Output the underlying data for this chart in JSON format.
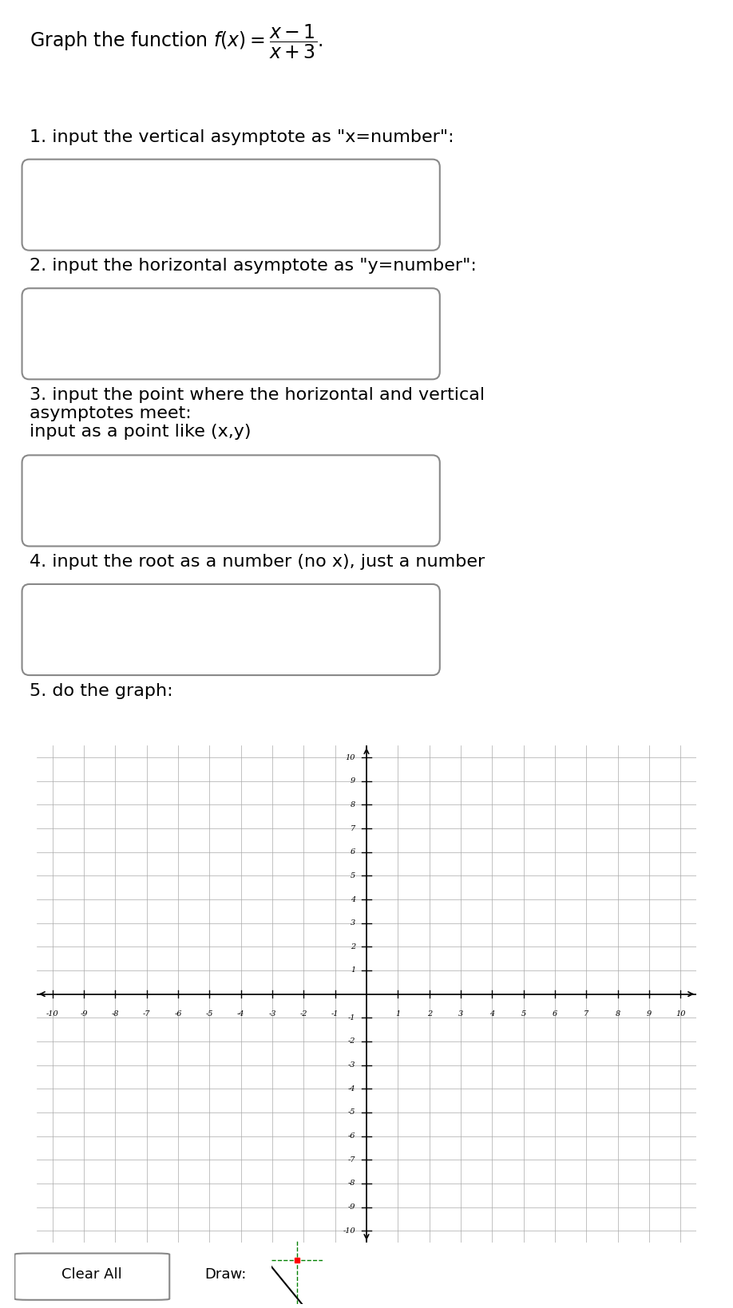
{
  "title_text": "Graph the function $f(x) = \\dfrac{x - 1}{x + 3}$.",
  "instruction1": "1. input the vertical asymptote as \"x=number\":",
  "instruction2": "2. input the horizontal asymptote as \"y=number\":",
  "instruction3": "3. input the point where the horizontal and vertical\nasymptotes meet:\ninput as a point like (x,y)",
  "instruction4": "4. input the root as a number (no x), just a number",
  "instruction5": "5. do the graph:",
  "bg_color": "#ffffff",
  "box_color": "#aaaaaa",
  "grid_color": "#aaaaaa",
  "axis_color": "#000000",
  "text_color": "#000000",
  "xmin": -10,
  "xmax": 10,
  "ymin": -10,
  "ymax": 10,
  "xticks": [
    -10,
    -9,
    -8,
    -7,
    -6,
    -5,
    -4,
    -3,
    -2,
    -1,
    1,
    2,
    3,
    4,
    5,
    6,
    7,
    8,
    9,
    10
  ],
  "yticks": [
    -10,
    -9,
    -8,
    -7,
    -6,
    -5,
    -4,
    -3,
    -2,
    -1,
    1,
    2,
    3,
    4,
    5,
    6,
    7,
    8,
    9,
    10
  ],
  "draw_icon_bg": "#e8f0e8",
  "clear_all_label": "Clear All",
  "draw_label": "Draw:"
}
